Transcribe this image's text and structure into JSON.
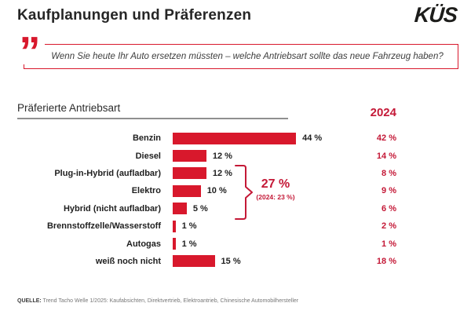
{
  "header": {
    "title": "Kaufplanungen und Präferenzen",
    "logo": "KÜS"
  },
  "quote": {
    "icon": "”",
    "text": "Wenn Sie heute Ihr Auto ersetzen müssten – welche Antriebsart sollte das neue Fahrzeug haben?"
  },
  "section": {
    "title": "Präferierte Antriebsart"
  },
  "colors": {
    "bar_red": "#d8182c",
    "accent_red": "#c41937",
    "rule_gray": "#8f8f8f"
  },
  "chart_data": {
    "type": "bar",
    "orientation": "horizontal",
    "title": "Präferierte Antriebsart",
    "categories": [
      "Benzin",
      "Diesel",
      "Plug-in-Hybrid (aufladbar)",
      "Elektro",
      "Hybrid (nicht aufladbar)",
      "Brennstoffzelle/Wasserstoff",
      "Autogas",
      "weiß noch nicht"
    ],
    "values": [
      44,
      12,
      12,
      10,
      5,
      1,
      1,
      15
    ],
    "value_suffix": " %",
    "xlim": [
      0,
      50
    ],
    "comparison": {
      "header": "2024",
      "values": [
        42,
        14,
        8,
        9,
        6,
        2,
        1,
        18
      ],
      "value_suffix": " %"
    },
    "annotation": {
      "label": "27 %",
      "sub": "(2024: 23 %)",
      "applies_to": [
        "Plug-in-Hybrid (aufladbar)",
        "Elektro",
        "Hybrid (nicht aufladbar)"
      ]
    }
  },
  "footer": {
    "source_label": "QUELLE:",
    "source_text": " Trend Tacho Welle 1/2025: Kaufabsichten, Direktvertrieb, Elektroantrieb, Chinesische Automobilhersteller"
  }
}
